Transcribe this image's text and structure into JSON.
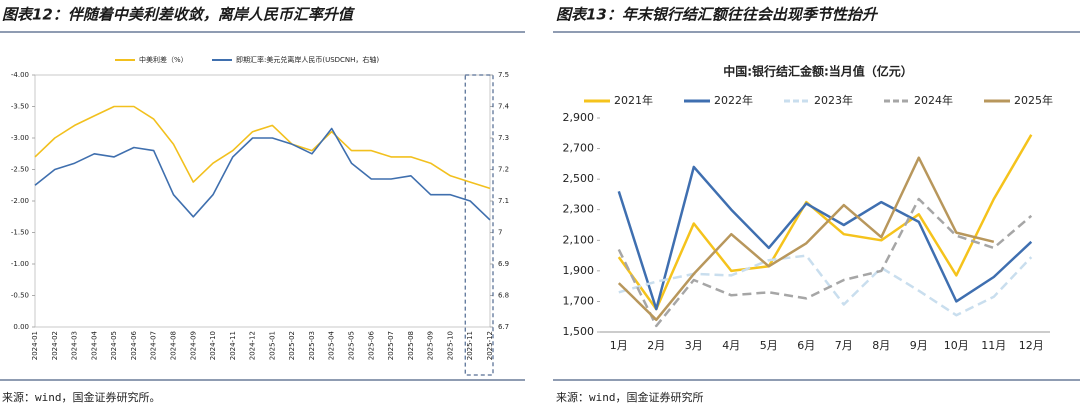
{
  "chart_data": [
    {
      "type": "line",
      "figure_title": "图表12：伴随着中美利差收敛，离岸人民币汇率升值",
      "source": "来源：wind，国金证券研究所。",
      "x": [
        "2024-01",
        "2024-02",
        "2024-03",
        "2024-04",
        "2024-05",
        "2024-06",
        "2024-07",
        "2024-08",
        "2024-09",
        "2024-10",
        "2024-11",
        "2024-12",
        "2025-01",
        "2025-02",
        "2025-03",
        "2025-04",
        "2025-05",
        "2025-06",
        "2025-07",
        "2025-08",
        "2025-09",
        "2025-10",
        "2025-11",
        "2025-12"
      ],
      "series": [
        {
          "name": "中美利差（%）",
          "color": "#f2c01e",
          "values": [
            -2.7,
            -3.0,
            -3.2,
            -3.35,
            -3.5,
            -3.5,
            -3.3,
            -2.9,
            -2.3,
            -2.6,
            -2.8,
            -3.1,
            -3.2,
            -2.9,
            -2.8,
            -3.1,
            -2.8,
            -2.8,
            -2.7,
            -2.7,
            -2.6,
            -2.4,
            -2.3,
            -2.2
          ]
        },
        {
          "name": "即期汇率:美元兑离岸人民币(USDCNH，右轴)",
          "color": "#3f6fae",
          "axis": "y2",
          "values": [
            7.15,
            7.2,
            7.22,
            7.25,
            7.24,
            7.27,
            7.26,
            7.12,
            7.05,
            7.12,
            7.24,
            7.3,
            7.3,
            7.28,
            7.25,
            7.33,
            7.22,
            7.17,
            7.17,
            7.18,
            7.12,
            7.12,
            7.1,
            7.04
          ]
        }
      ],
      "ylim": [
        -4,
        0
      ],
      "yreverse": true,
      "yticks": [
        {
          "value": -4,
          "label": "-4.00"
        },
        {
          "value": -3.5,
          "label": "-3.50"
        },
        {
          "value": -3,
          "label": "-3.00"
        },
        {
          "value": -2.5,
          "label": "-2.50"
        },
        {
          "value": -2,
          "label": "-2.00"
        },
        {
          "value": -1.5,
          "label": "-1.50"
        },
        {
          "value": -1,
          "label": "-1.00"
        },
        {
          "value": -0.5,
          "label": "-0.50"
        },
        {
          "value": 0,
          "label": "0.00"
        }
      ],
      "y2lim": [
        6.7,
        7.5
      ],
      "y2ticks": [
        6.7,
        6.8,
        6.9,
        7,
        7.1,
        7.2,
        7.3,
        7.4,
        7.5
      ],
      "legend": "top"
    },
    {
      "type": "line",
      "figure_title": "图表13：年末银行结汇额往往会出现季节性抬升",
      "title": "中国:银行结汇金额:当月值（亿元）",
      "source": "来源：wind，国金证券研究所",
      "categories": [
        "1月",
        "2月",
        "3月",
        "4月",
        "5月",
        "6月",
        "7月",
        "8月",
        "9月",
        "10月",
        "11月",
        "12月"
      ],
      "series": [
        {
          "name": "2021年",
          "color": "#f5c31c",
          "values": [
            1990,
            1650,
            2210,
            1900,
            1930,
            2350,
            2140,
            2100,
            2270,
            1870,
            2370,
            2790
          ]
        },
        {
          "name": "2022年",
          "color": "#3f6fb0",
          "values": [
            2420,
            1650,
            2580,
            2300,
            2050,
            2340,
            2200,
            2350,
            2220,
            1700,
            1860,
            2090
          ]
        },
        {
          "name": "2023年",
          "color": "#c9deee",
          "dash": true,
          "values": [
            1760,
            1830,
            1880,
            1870,
            1970,
            2000,
            1680,
            1920,
            1770,
            1610,
            1730,
            1990
          ]
        },
        {
          "name": "2024年",
          "color": "#a6a6a6",
          "dash": true,
          "values": [
            2040,
            1540,
            1840,
            1740,
            1760,
            1720,
            1840,
            1900,
            2370,
            2130,
            2050,
            2260
          ]
        },
        {
          "name": "2025年",
          "color": "#b8975c",
          "values": [
            1820,
            1580,
            1880,
            2140,
            1930,
            2080,
            2330,
            2120,
            2640,
            2150,
            2090,
            null
          ]
        }
      ],
      "ylim": [
        1500,
        2900
      ],
      "yticks": [
        {
          "value": 1500,
          "label": "1,500"
        },
        {
          "value": 1700,
          "label": "1,700"
        },
        {
          "value": 1900,
          "label": "1,900"
        },
        {
          "value": 2100,
          "label": "2,100"
        },
        {
          "value": 2300,
          "label": "2,300"
        },
        {
          "value": 2500,
          "label": "2,500"
        },
        {
          "value": 2700,
          "label": "2,700"
        },
        {
          "value": 2900,
          "label": "2,900"
        }
      ],
      "legend": "top"
    }
  ]
}
